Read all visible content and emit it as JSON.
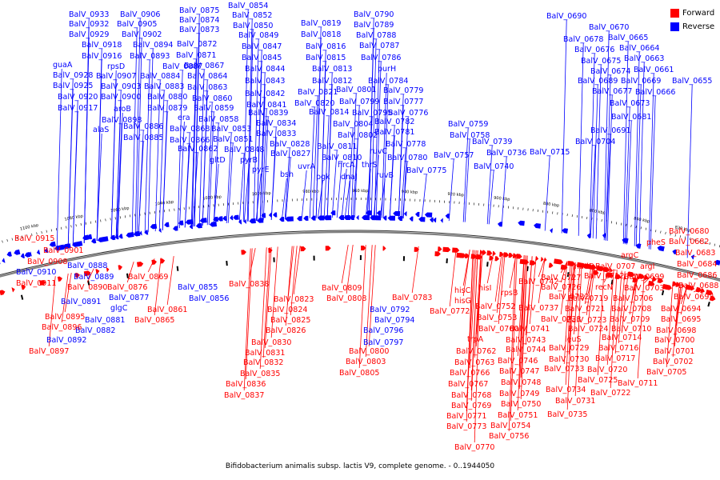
{
  "legend": {
    "forward": {
      "label": "Forward",
      "color": "#ff0000"
    },
    "reverse": {
      "label": "Reverse",
      "color": "#0000ff"
    }
  },
  "caption": "Bifidobacterium animalis subsp. lactis V9, complete genome. - 0..1944050",
  "backbone_color": "#808080",
  "tick_labels": [
    "1100 kbp",
    "1080 kbp",
    "1060 kbp",
    "1040 kbp",
    "1020 kbp",
    "1000 kbp",
    "980 kbp",
    "960 kbp",
    "940 kbp",
    "920 kbp",
    "900 kbp",
    "880 kbp",
    "860 kbp",
    "840 kbp",
    "820 kbp"
  ],
  "reverse_genes": [
    "BalV_0933",
    "BalV_0906",
    "BalV_0875",
    "BalV_0854",
    "BalV_0932",
    "BalV_0905",
    "BalV_0874",
    "BalV_0852",
    "BalV_0929",
    "BalV_0902",
    "BalV_0873",
    "BalV_0850",
    "BalV_0918",
    "BalV_0894",
    "BalV_0872",
    "BalV_0849",
    "BalV_0916",
    "BalV_0893",
    "BalV_0871",
    "BalV_0847",
    "guaA",
    "rpsD",
    "BalV_0887",
    "BalV_0867",
    "BalV_0845",
    "BalV_0928",
    "BalV_0907",
    "BalV_0884",
    "BalV_0864",
    "BalV_0844",
    "BalV_0925",
    "BalV_0903",
    "BalV_0883",
    "BalV_0863",
    "BalV_0843",
    "BalV_0920",
    "BalV_0900",
    "BalV_0880",
    "BalV_0860",
    "BalV_0842",
    "BalV_0917",
    "aroB",
    "BalV_0879",
    "BalV_0859",
    "BalV_0841",
    "alaS",
    "BalV_0898",
    "BalV_0868",
    "BalV_0858",
    "BalV_0839",
    "BalV_0886",
    "BalV_0866",
    "BalV_0853",
    "BalV_0834",
    "BalV_0885",
    "BalV_0862",
    "BalV_0851",
    "BalV_0833",
    "era",
    "gltD",
    "BalV_0848",
    "BalV_0828",
    "pyrB",
    "BalV_0827",
    "pyrE",
    "bsh",
    "BalV_0819",
    "BalV_0818",
    "BalV_0816",
    "BalV_0815",
    "BalV_0813",
    "BalV_0812",
    "BalV_0821",
    "BalV_0820",
    "BalV_0814",
    "BalV_0811",
    "BalV_0810",
    "uvrA",
    "pgk",
    "BalV_0790",
    "BalV_0789",
    "BalV_0788",
    "BalV_0787",
    "BalV_0786",
    "purH",
    "BalV_0784",
    "BalV_0801",
    "BalV_0779",
    "BalV_0799",
    "BalV_0777",
    "BalV_0795",
    "BalV_0776",
    "BalV_0804",
    "BalV_0782",
    "BalV_0802",
    "BalV_0781",
    "ruvC",
    "BalV_0778",
    "hrcA",
    "thrS",
    "BalV_0780",
    "dnaJ",
    "ruvB",
    "BalV_0775",
    "BalV_0759",
    "BalV_0758",
    "BalV_0757",
    "BalV_0739",
    "BalV_0736",
    "BalV_0740",
    "BalV_0715",
    "BalV_0704",
    "BalV_0690",
    "BalV_0670",
    "BalV_0678",
    "BalV_0665",
    "BalV_0676",
    "BalV_0664",
    "BalV_0675",
    "BalV_0663",
    "BalV_0674",
    "BalV_0661",
    "BalV_0689",
    "BalV_0669",
    "BalV_0655",
    "BalV_0677",
    "BalV_0666",
    "BalV_0673",
    "BalV_0681",
    "BalV_0691",
    "BalV_0855",
    "BalV_0856",
    "BalV_0888",
    "BalV_0889",
    "BalV_0877",
    "BalV_0891",
    "BalV_0881",
    "BalV_0882",
    "BalV_0892",
    "BalV_0910",
    "glgC",
    "BalV_0792",
    "BalV_0794",
    "BalV_0796",
    "BalV_0797"
  ],
  "forward_genes": [
    "BalV_0915",
    "BalV_0901",
    "BalV_0908",
    "BalV_0911",
    "BalV_0890",
    "BalV_0876",
    "BalV_0869",
    "BalV_0861",
    "BalV_0865",
    "BalV_0895",
    "BalV_0896",
    "BalV_0897",
    "BalV_0838",
    "BalV_0823",
    "BalV_0824",
    "BalV_0825",
    "BalV_0826",
    "BalV_0830",
    "BalV_0831",
    "BalV_0832",
    "BalV_0835",
    "BalV_0836",
    "BalV_0837",
    "BalV_0809",
    "BalV_0808",
    "BalV_0783",
    "BalV_0800",
    "BalV_0803",
    "BalV_0805",
    "hisC",
    "hisG",
    "BalV_0772",
    "hisI",
    "BalV_0752",
    "BalV_0753",
    "BalV_0760",
    "trpA",
    "BalV_0762",
    "BalV_0763",
    "BalV_0766",
    "BalV_0767",
    "BalV_0768",
    "BalV_0769",
    "BalV_0771",
    "BalV_0773",
    "BalV_0770",
    "rpsB",
    "BalV_0742",
    "BalV_0737",
    "BalV_0741",
    "BalV_0743",
    "BalV_0744",
    "BalV_0746",
    "BalV_0747",
    "BalV_0748",
    "BalV_0749",
    "BalV_0750",
    "BalV_0751",
    "BalV_0754",
    "BalV_0756",
    "BalV_0727",
    "BalV_0726",
    "BalV_0732",
    "BalV_0738",
    "BalV_0729",
    "BalV_0730",
    "BalV_0733",
    "BalV_0734",
    "BalV_0731",
    "BalV_0735",
    "nadD",
    "BalV_0719",
    "BalV_0721",
    "BalV_0723",
    "BalV_0724",
    "leuS",
    "BalV_0725",
    "BalV_0722",
    "BalV_0720",
    "BalV_0717",
    "BalV_0716",
    "BalV_0714",
    "BalV_0712",
    "BalV_0707",
    "recN",
    "BalV_0708",
    "BalV_0710",
    "BalV_0709",
    "BalV_0703",
    "BalV_0706",
    "BalV_0711",
    "argC",
    "argI",
    "pheS",
    "BalV_0699",
    "BalV_0680",
    "BalV_0682",
    "BalV_0683",
    "BalV_0684",
    "BalV_0686",
    "BalV_0688",
    "BalV_0692",
    "BalV_0694",
    "BalV_0695",
    "BalV_0698",
    "BalV_0700",
    "BalV_0701",
    "BalV_0702",
    "BalV_0705"
  ]
}
